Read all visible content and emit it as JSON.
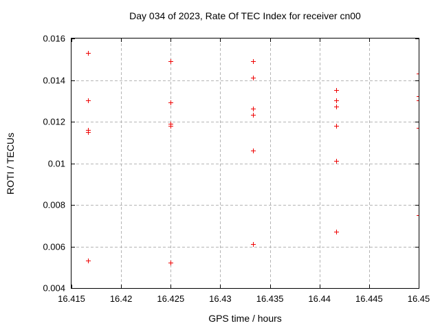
{
  "chart_data": {
    "type": "scatter",
    "title": "Day 034 of 2023, Rate Of TEC Index for receiver cn00",
    "xlabel": "GPS time / hours",
    "ylabel": "ROTI / TECUs",
    "xlim": [
      16.415,
      16.45
    ],
    "ylim": [
      0.004,
      0.016
    ],
    "grid": true,
    "legend": false,
    "marker": "plus",
    "x_ticks": [
      16.415,
      16.42,
      16.425,
      16.43,
      16.435,
      16.44,
      16.445,
      16.45
    ],
    "x_tick_labels": [
      "16.415",
      "16.42",
      "16.425",
      "16.43",
      "16.435",
      "16.44",
      "16.445",
      "16.45"
    ],
    "y_ticks": [
      0.004,
      0.006,
      0.008,
      0.01,
      0.012,
      0.014,
      0.016
    ],
    "y_tick_labels": [
      "0.004",
      "0.006",
      "0.008",
      "0.01",
      "0.012",
      "0.014",
      "0.016"
    ],
    "series": [
      {
        "name": "roti",
        "points": [
          [
            16.4167,
            0.0153
          ],
          [
            16.4167,
            0.013
          ],
          [
            16.4167,
            0.0116
          ],
          [
            16.4167,
            0.0115
          ],
          [
            16.4167,
            0.0053
          ],
          [
            16.425,
            0.0149
          ],
          [
            16.425,
            0.0129
          ],
          [
            16.425,
            0.0119
          ],
          [
            16.425,
            0.0118
          ],
          [
            16.425,
            0.0052
          ],
          [
            16.4333,
            0.0149
          ],
          [
            16.4333,
            0.0141
          ],
          [
            16.4333,
            0.0126
          ],
          [
            16.4333,
            0.0123
          ],
          [
            16.4333,
            0.0106
          ],
          [
            16.4333,
            0.0061
          ],
          [
            16.4417,
            0.0135
          ],
          [
            16.4417,
            0.013
          ],
          [
            16.4417,
            0.0127
          ],
          [
            16.4417,
            0.0118
          ],
          [
            16.4417,
            0.0101
          ],
          [
            16.4417,
            0.0067
          ],
          [
            16.45,
            0.0143
          ],
          [
            16.45,
            0.0132
          ],
          [
            16.45,
            0.013
          ],
          [
            16.45,
            0.0117
          ],
          [
            16.45,
            0.0075
          ]
        ]
      }
    ],
    "colors": {
      "marker": "#ee0000",
      "grid": "#b4b4b4",
      "axis": "#000000",
      "text": "#000000",
      "background": "#ffffff"
    }
  }
}
